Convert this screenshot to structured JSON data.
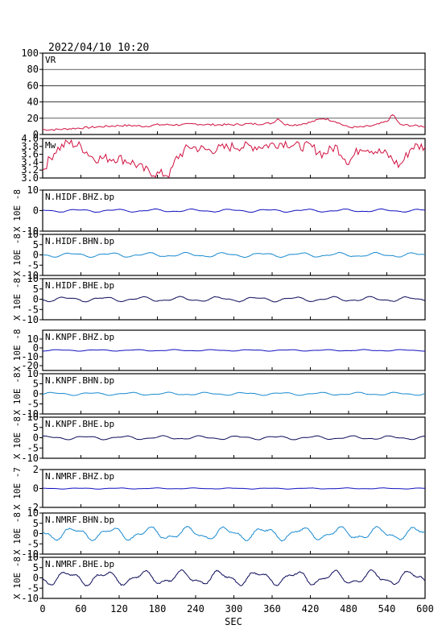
{
  "title": "2022/04/10 10:20",
  "chart_data": {
    "type": "line",
    "title": "2022/04/10 10:20",
    "xlabel": "SEC",
    "xlim": [
      0,
      600
    ],
    "xticks": [
      0,
      60,
      120,
      180,
      240,
      300,
      360,
      420,
      480,
      540,
      600
    ],
    "panels": [
      {
        "label": "VR",
        "unit": "",
        "ylim": [
          0,
          100
        ],
        "yticks": [
          "100",
          "80",
          "60",
          "40",
          "20",
          "0"
        ],
        "grid": true,
        "color": "#d01040",
        "kind": "vr",
        "x": [
          0,
          20,
          40,
          60,
          80,
          100,
          120,
          140,
          160,
          180,
          200,
          220,
          240,
          260,
          280,
          300,
          320,
          340,
          360,
          370,
          380,
          400,
          420,
          440,
          460,
          470,
          480,
          500,
          520,
          540,
          550,
          560,
          580,
          600
        ],
        "values": [
          6,
          6,
          7,
          8,
          9,
          10,
          11,
          11,
          10,
          12,
          12,
          12,
          13,
          12,
          12,
          12,
          13,
          13,
          14,
          20,
          12,
          12,
          15,
          20,
          16,
          12,
          9,
          9,
          11,
          16,
          25,
          12,
          11,
          10
        ]
      },
      {
        "label": "Mw",
        "unit": "",
        "ylim": [
          3.0,
          4.0
        ],
        "yticks": [
          "4.0",
          "3.8",
          "3.6",
          "3.4",
          "3.2",
          "3.0"
        ],
        "grid": false,
        "color": "#d01040",
        "kind": "mw",
        "x": [
          0,
          20,
          40,
          60,
          80,
          100,
          120,
          140,
          160,
          180,
          200,
          210,
          230,
          260,
          300,
          340,
          380,
          400,
          420,
          440,
          460,
          480,
          500,
          520,
          540,
          560,
          580,
          600
        ],
        "values": [
          3.2,
          3.7,
          3.9,
          3.8,
          3.5,
          3.5,
          3.5,
          3.4,
          3.2,
          3.1,
          3.1,
          3.5,
          3.8,
          3.7,
          3.8,
          3.8,
          3.9,
          3.8,
          3.8,
          3.6,
          3.8,
          3.4,
          3.8,
          3.7,
          3.6,
          3.3,
          3.8,
          3.8
        ]
      },
      {
        "label": "N.HIDF.BHZ.bp",
        "unit": "X 10E -8",
        "ylim": [
          -10,
          10
        ],
        "yticks": [
          "10",
          "0",
          "-10"
        ],
        "color": "#1010c0",
        "amp": 0.8
      },
      {
        "label": "N.HIDF.BHN.bp",
        "unit": "X 10E -8",
        "ylim": [
          -10,
          10
        ],
        "yticks": [
          "10",
          "5",
          "0",
          "-5",
          "-10"
        ],
        "color": "#1a8ad0",
        "amp": 1.2
      },
      {
        "label": "N.HIDF.BHE.bp",
        "unit": "X 10E -8",
        "ylim": [
          -10,
          10
        ],
        "yticks": [
          "10",
          "5",
          "0",
          "-5",
          "-10"
        ],
        "color": "#0c0c5a",
        "amp": 1.3
      },
      {
        "label": "N.KNPF.BHZ.bp",
        "unit": "X 10E -8",
        "ylim": [
          -20,
          20
        ],
        "yticks": [
          "10",
          "0",
          "-10",
          "-20"
        ],
        "color": "#1010c0",
        "amp": 0.8
      },
      {
        "label": "N.KNPF.BHN.bp",
        "unit": "X 10E -8",
        "ylim": [
          -10,
          10
        ],
        "yticks": [
          "10",
          "5",
          "0",
          "-5",
          "-10"
        ],
        "color": "#1a8ad0",
        "amp": 0.8
      },
      {
        "label": "N.KNPF.BHE.bp",
        "unit": "X 10E -8",
        "ylim": [
          -10,
          10
        ],
        "yticks": [
          "10",
          "5",
          "0",
          "-5",
          "-10"
        ],
        "color": "#0c0c5a",
        "amp": 1.0
      },
      {
        "label": "N.NMRF.BHZ.bp",
        "unit": "X 10E -7",
        "ylim": [
          -2,
          2
        ],
        "yticks": [
          "2",
          "0",
          "-2"
        ],
        "color": "#1010c0",
        "amp": 0.06
      },
      {
        "label": "N.NMRF.BHN.bp",
        "unit": "X 10E -8",
        "ylim": [
          -10,
          10
        ],
        "yticks": [
          "10",
          "5",
          "0",
          "-5",
          "-10"
        ],
        "color": "#1a8ad0",
        "amp": 3.5
      },
      {
        "label": "N.NMRF.BHE.bp",
        "unit": "X 10E -8",
        "ylim": [
          -10,
          10
        ],
        "yticks": [
          "10",
          "5",
          "0",
          "-5",
          "-10"
        ],
        "color": "#0c0c5a",
        "amp": 3.8
      }
    ]
  }
}
